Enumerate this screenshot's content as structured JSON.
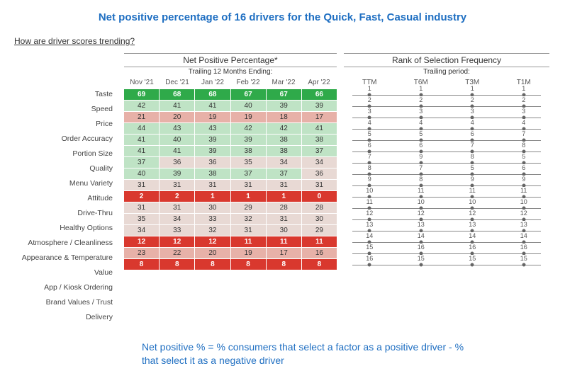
{
  "title": "Net positive percentage of 16 drivers for the Quick, Fast, Casual industry",
  "subtitle": "How are driver scores trending?",
  "footnote": "Net positive % = % consumers that select a factor as a positive driver - % that select it as a negative driver",
  "npp": {
    "section_title": "Net Positive Percentage*",
    "section_sub": "Trailing 12 Months Ending:",
    "columns": [
      "Nov '21",
      "Dec '21",
      "Jan '22",
      "Feb '22",
      "Mar '22",
      "Apr '22"
    ]
  },
  "rank": {
    "section_title": "Rank of Selection Frequency",
    "section_sub": "Trailing period:",
    "columns": [
      "TTM",
      "T6M",
      "T3M",
      "T1M"
    ]
  },
  "color_scale": {
    "high": "#2faa4a",
    "mid_high": "#bfe3c5",
    "mid": "#e8d9d4",
    "mid_low": "#e7b1a8",
    "low": "#d9382e",
    "high_text": "#ffffff",
    "low_text": "#ffffff"
  },
  "drivers": [
    {
      "label": "Taste",
      "values": [
        69,
        68,
        68,
        67,
        67,
        66
      ],
      "ranks": [
        1,
        1,
        1,
        1
      ]
    },
    {
      "label": "Speed",
      "values": [
        42,
        41,
        41,
        40,
        39,
        39
      ],
      "ranks": [
        2,
        2,
        2,
        2
      ]
    },
    {
      "label": "Price",
      "values": [
        21,
        20,
        19,
        19,
        18,
        17
      ],
      "ranks": [
        3,
        3,
        3,
        3
      ]
    },
    {
      "label": "Order Accuracy",
      "values": [
        44,
        43,
        43,
        42,
        42,
        41
      ],
      "ranks": [
        4,
        4,
        4,
        4
      ]
    },
    {
      "label": "Portion Size",
      "values": [
        41,
        40,
        39,
        39,
        38,
        38
      ],
      "ranks": [
        5,
        5,
        6,
        7
      ]
    },
    {
      "label": "Quality",
      "values": [
        41,
        41,
        39,
        38,
        38,
        37
      ],
      "ranks": [
        6,
        6,
        7,
        8
      ]
    },
    {
      "label": "Menu Variety",
      "values": [
        37,
        36,
        36,
        35,
        34,
        34
      ],
      "ranks": [
        7,
        9,
        8,
        5
      ]
    },
    {
      "label": "Attitude",
      "values": [
        40,
        39,
        38,
        37,
        37,
        36
      ],
      "ranks": [
        8,
        7,
        5,
        6
      ]
    },
    {
      "label": "Drive-Thru",
      "values": [
        31,
        31,
        31,
        31,
        31,
        31
      ],
      "ranks": [
        9,
        8,
        9,
        9
      ]
    },
    {
      "label": "Healthy Options",
      "values": [
        2,
        2,
        1,
        1,
        1,
        0
      ],
      "ranks": [
        10,
        11,
        11,
        11
      ]
    },
    {
      "label": "Atmosphere / Cleanliness",
      "values": [
        31,
        31,
        30,
        29,
        28,
        28
      ],
      "ranks": [
        11,
        10,
        10,
        10
      ]
    },
    {
      "label": "Appearance & Temperature",
      "values": [
        35,
        34,
        33,
        32,
        31,
        30
      ],
      "ranks": [
        12,
        12,
        12,
        12
      ]
    },
    {
      "label": "Value",
      "values": [
        34,
        33,
        32,
        31,
        30,
        29
      ],
      "ranks": [
        13,
        13,
        13,
        13
      ]
    },
    {
      "label": "App / Kiosk Ordering",
      "values": [
        12,
        12,
        12,
        11,
        11,
        11
      ],
      "ranks": [
        14,
        14,
        14,
        14
      ]
    },
    {
      "label": "Brand Values / Trust",
      "values": [
        23,
        22,
        20,
        19,
        17,
        16
      ],
      "ranks": [
        15,
        16,
        16,
        16
      ]
    },
    {
      "label": "Delivery",
      "values": [
        8,
        8,
        8,
        8,
        8,
        8
      ],
      "ranks": [
        16,
        15,
        15,
        15
      ]
    }
  ]
}
